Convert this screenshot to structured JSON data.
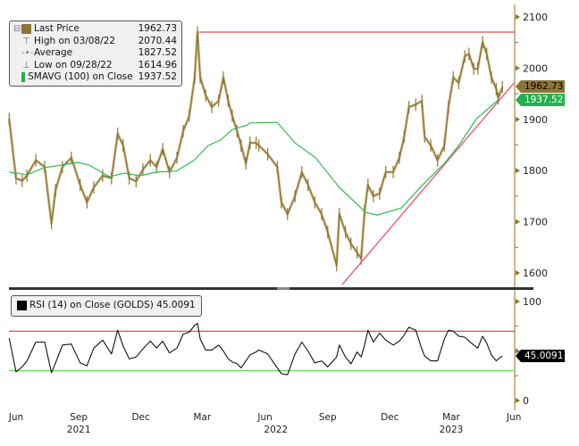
{
  "legend": {
    "last_price": {
      "label": "Last Price",
      "value": "1962.73"
    },
    "high": {
      "label": "High on 03/08/22",
      "value": "2070.44"
    },
    "average": {
      "label": "Average",
      "value": "1827.52"
    },
    "low": {
      "label": "Low on 09/28/22",
      "value": "1614.96"
    },
    "sma": {
      "label": "SMAVG (100)  on Close",
      "value": "1937.52"
    }
  },
  "rsi_legend": {
    "label": "RSI (14)  on Close (GOLDS)",
    "value": "45.0091"
  },
  "tags": {
    "price": "1962.73",
    "sma": "1937.52",
    "rsi": "45.0091"
  },
  "colors": {
    "price": "#8c7536",
    "sma": "#2dbd4e",
    "high_line": "#e02020",
    "trendline": "#f0506e",
    "rsi": "#111111",
    "rsi_upper": "#e02020",
    "rsi_lower": "#4cd44c",
    "axis": "#c8b88a"
  },
  "chart_data": [
    {
      "type": "line",
      "panel": "price",
      "ylim": [
        1560,
        2120
      ],
      "yticks": [
        1600,
        1700,
        1800,
        1900,
        2000,
        2100
      ],
      "grid": false,
      "legend_placement": "top-left",
      "dates": [
        "2021-06-05",
        "2021-06-15",
        "2021-06-24",
        "2021-07-01",
        "2021-07-14",
        "2021-07-27",
        "2021-08-06",
        "2021-08-12",
        "2021-08-22",
        "2021-09-04",
        "2021-09-17",
        "2021-09-27",
        "2021-10-07",
        "2021-10-20",
        "2021-11-02",
        "2021-11-11",
        "2021-11-19",
        "2021-11-28",
        "2021-12-08",
        "2021-12-18",
        "2021-12-29",
        "2022-01-07",
        "2022-01-16",
        "2022-01-26",
        "2022-02-06",
        "2022-02-15",
        "2022-02-24",
        "2022-03-04",
        "2022-03-08",
        "2022-03-12",
        "2022-03-20",
        "2022-03-29",
        "2022-04-08",
        "2022-04-15",
        "2022-04-22",
        "2022-04-28",
        "2022-05-05",
        "2022-05-11",
        "2022-05-18",
        "2022-05-24",
        "2022-06-02",
        "2022-06-06",
        "2022-06-19",
        "2022-07-03",
        "2022-07-09",
        "2022-07-18",
        "2022-07-29",
        "2022-08-08",
        "2022-08-17",
        "2022-08-27",
        "2022-09-06",
        "2022-09-15",
        "2022-09-28",
        "2022-10-02",
        "2022-10-11",
        "2022-10-19",
        "2022-10-28",
        "2022-11-03",
        "2022-11-08",
        "2022-11-13",
        "2022-11-21",
        "2022-11-30",
        "2022-12-09",
        "2022-12-20",
        "2022-12-29",
        "2023-01-05",
        "2023-01-12",
        "2023-01-22",
        "2023-01-31",
        "2023-02-04",
        "2023-02-13",
        "2023-02-23",
        "2023-03-05",
        "2023-03-11",
        "2023-03-18",
        "2023-03-26",
        "2023-04-04",
        "2023-04-10",
        "2023-04-17",
        "2023-04-23",
        "2023-04-30",
        "2023-05-06",
        "2023-05-13",
        "2023-05-20",
        "2023-05-23",
        "2023-05-29"
      ],
      "series": [
        {
          "name": "Last Price",
          "values": [
            1901,
            1785,
            1780,
            1790,
            1820,
            1807,
            1697,
            1762,
            1807,
            1825,
            1772,
            1738,
            1767,
            1790,
            1785,
            1872,
            1849,
            1785,
            1779,
            1802,
            1820,
            1807,
            1842,
            1797,
            1825,
            1877,
            1907,
            1982,
            2070,
            1982,
            1947,
            1924,
            1936,
            1982,
            1936,
            1907,
            1877,
            1849,
            1814,
            1854,
            1854,
            1849,
            1832,
            1807,
            1738,
            1715,
            1750,
            1797,
            1772,
            1738,
            1715,
            1680,
            1615,
            1715,
            1680,
            1657,
            1640,
            1628,
            1720,
            1772,
            1750,
            1755,
            1797,
            1797,
            1825,
            1866,
            1924,
            1929,
            1936,
            1866,
            1849,
            1820,
            1849,
            1924,
            1982,
            1971,
            2023,
            2028,
            1999,
            1999,
            2051,
            2028,
            1982,
            1959,
            1941,
            1963
          ]
        }
      ],
      "sma": {
        "name": "SMAVG (100)  on Close",
        "dates": [
          "2021-06-05",
          "2021-07-01",
          "2021-07-27",
          "2021-08-22",
          "2021-09-13",
          "2021-09-30",
          "2021-10-30",
          "2021-11-21",
          "2021-12-13",
          "2022-01-08",
          "2022-02-05",
          "2022-03-03",
          "2022-03-24",
          "2022-04-11",
          "2022-04-28",
          "2022-05-20",
          "2022-05-24",
          "2022-07-03",
          "2022-07-29",
          "2022-08-28",
          "2022-10-02",
          "2022-11-10",
          "2022-11-27",
          "2023-01-01",
          "2023-02-01",
          "2023-03-05",
          "2023-03-26",
          "2023-04-21",
          "2023-05-23"
        ],
        "values": [
          1797,
          1792,
          1806,
          1811,
          1816,
          1811,
          1788,
          1795,
          1790,
          1797,
          1799,
          1820,
          1849,
          1860,
          1880,
          1889,
          1893,
          1894,
          1854,
          1825,
          1767,
          1718,
          1713,
          1727,
          1772,
          1814,
          1849,
          1901,
          1938
        ]
      },
      "high_line": {
        "date": "2022-03-08",
        "value": 2070.44
      },
      "trendline": {
        "start": {
          "date": "2022-10-06",
          "value": 1577
        },
        "end": {
          "date": "2023-06-15",
          "value": 1971
        }
      }
    },
    {
      "type": "line",
      "panel": "rsi",
      "ylim": [
        0,
        100
      ],
      "yticks": [
        0,
        50,
        100
      ],
      "reference_lines": [
        70,
        30
      ],
      "series": [
        {
          "name": "RSI (14)  on Close (GOLDS)",
          "values": [
            63,
            29,
            34,
            40,
            59,
            59,
            28,
            38,
            56,
            57,
            38,
            35,
            53,
            61,
            47,
            71,
            55,
            42,
            44,
            52,
            60,
            53,
            60,
            48,
            53,
            67,
            69,
            76,
            78,
            62,
            51,
            51,
            56,
            50,
            42,
            39,
            37,
            33,
            40,
            46,
            49,
            51,
            47,
            33,
            27,
            26,
            47,
            59,
            50,
            38,
            40,
            34,
            44,
            56,
            44,
            37,
            49,
            44,
            56,
            71,
            59,
            68,
            61,
            56,
            60,
            66,
            74,
            71,
            52,
            45,
            40,
            40,
            62,
            71,
            70,
            65,
            64,
            60,
            56,
            53,
            65,
            58,
            46,
            40,
            42,
            45
          ]
        }
      ]
    }
  ],
  "x_axis": {
    "months": [
      {
        "label": "Jun",
        "date": "2021-06-15"
      },
      {
        "label": "Sep",
        "date": "2021-09-15"
      },
      {
        "label": "Dec",
        "date": "2021-12-15"
      },
      {
        "label": "Mar",
        "date": "2022-03-15"
      },
      {
        "label": "Jun",
        "date": "2022-06-15"
      },
      {
        "label": "Sep",
        "date": "2022-09-15"
      },
      {
        "label": "Dec",
        "date": "2022-12-15"
      },
      {
        "label": "Mar",
        "date": "2023-03-15"
      },
      {
        "label": "Jun",
        "date": "2023-06-15"
      }
    ],
    "years": [
      {
        "label": "2021",
        "date": "2021-09-15"
      },
      {
        "label": "2022",
        "date": "2022-07-01"
      },
      {
        "label": "2023",
        "date": "2023-03-15"
      }
    ]
  }
}
